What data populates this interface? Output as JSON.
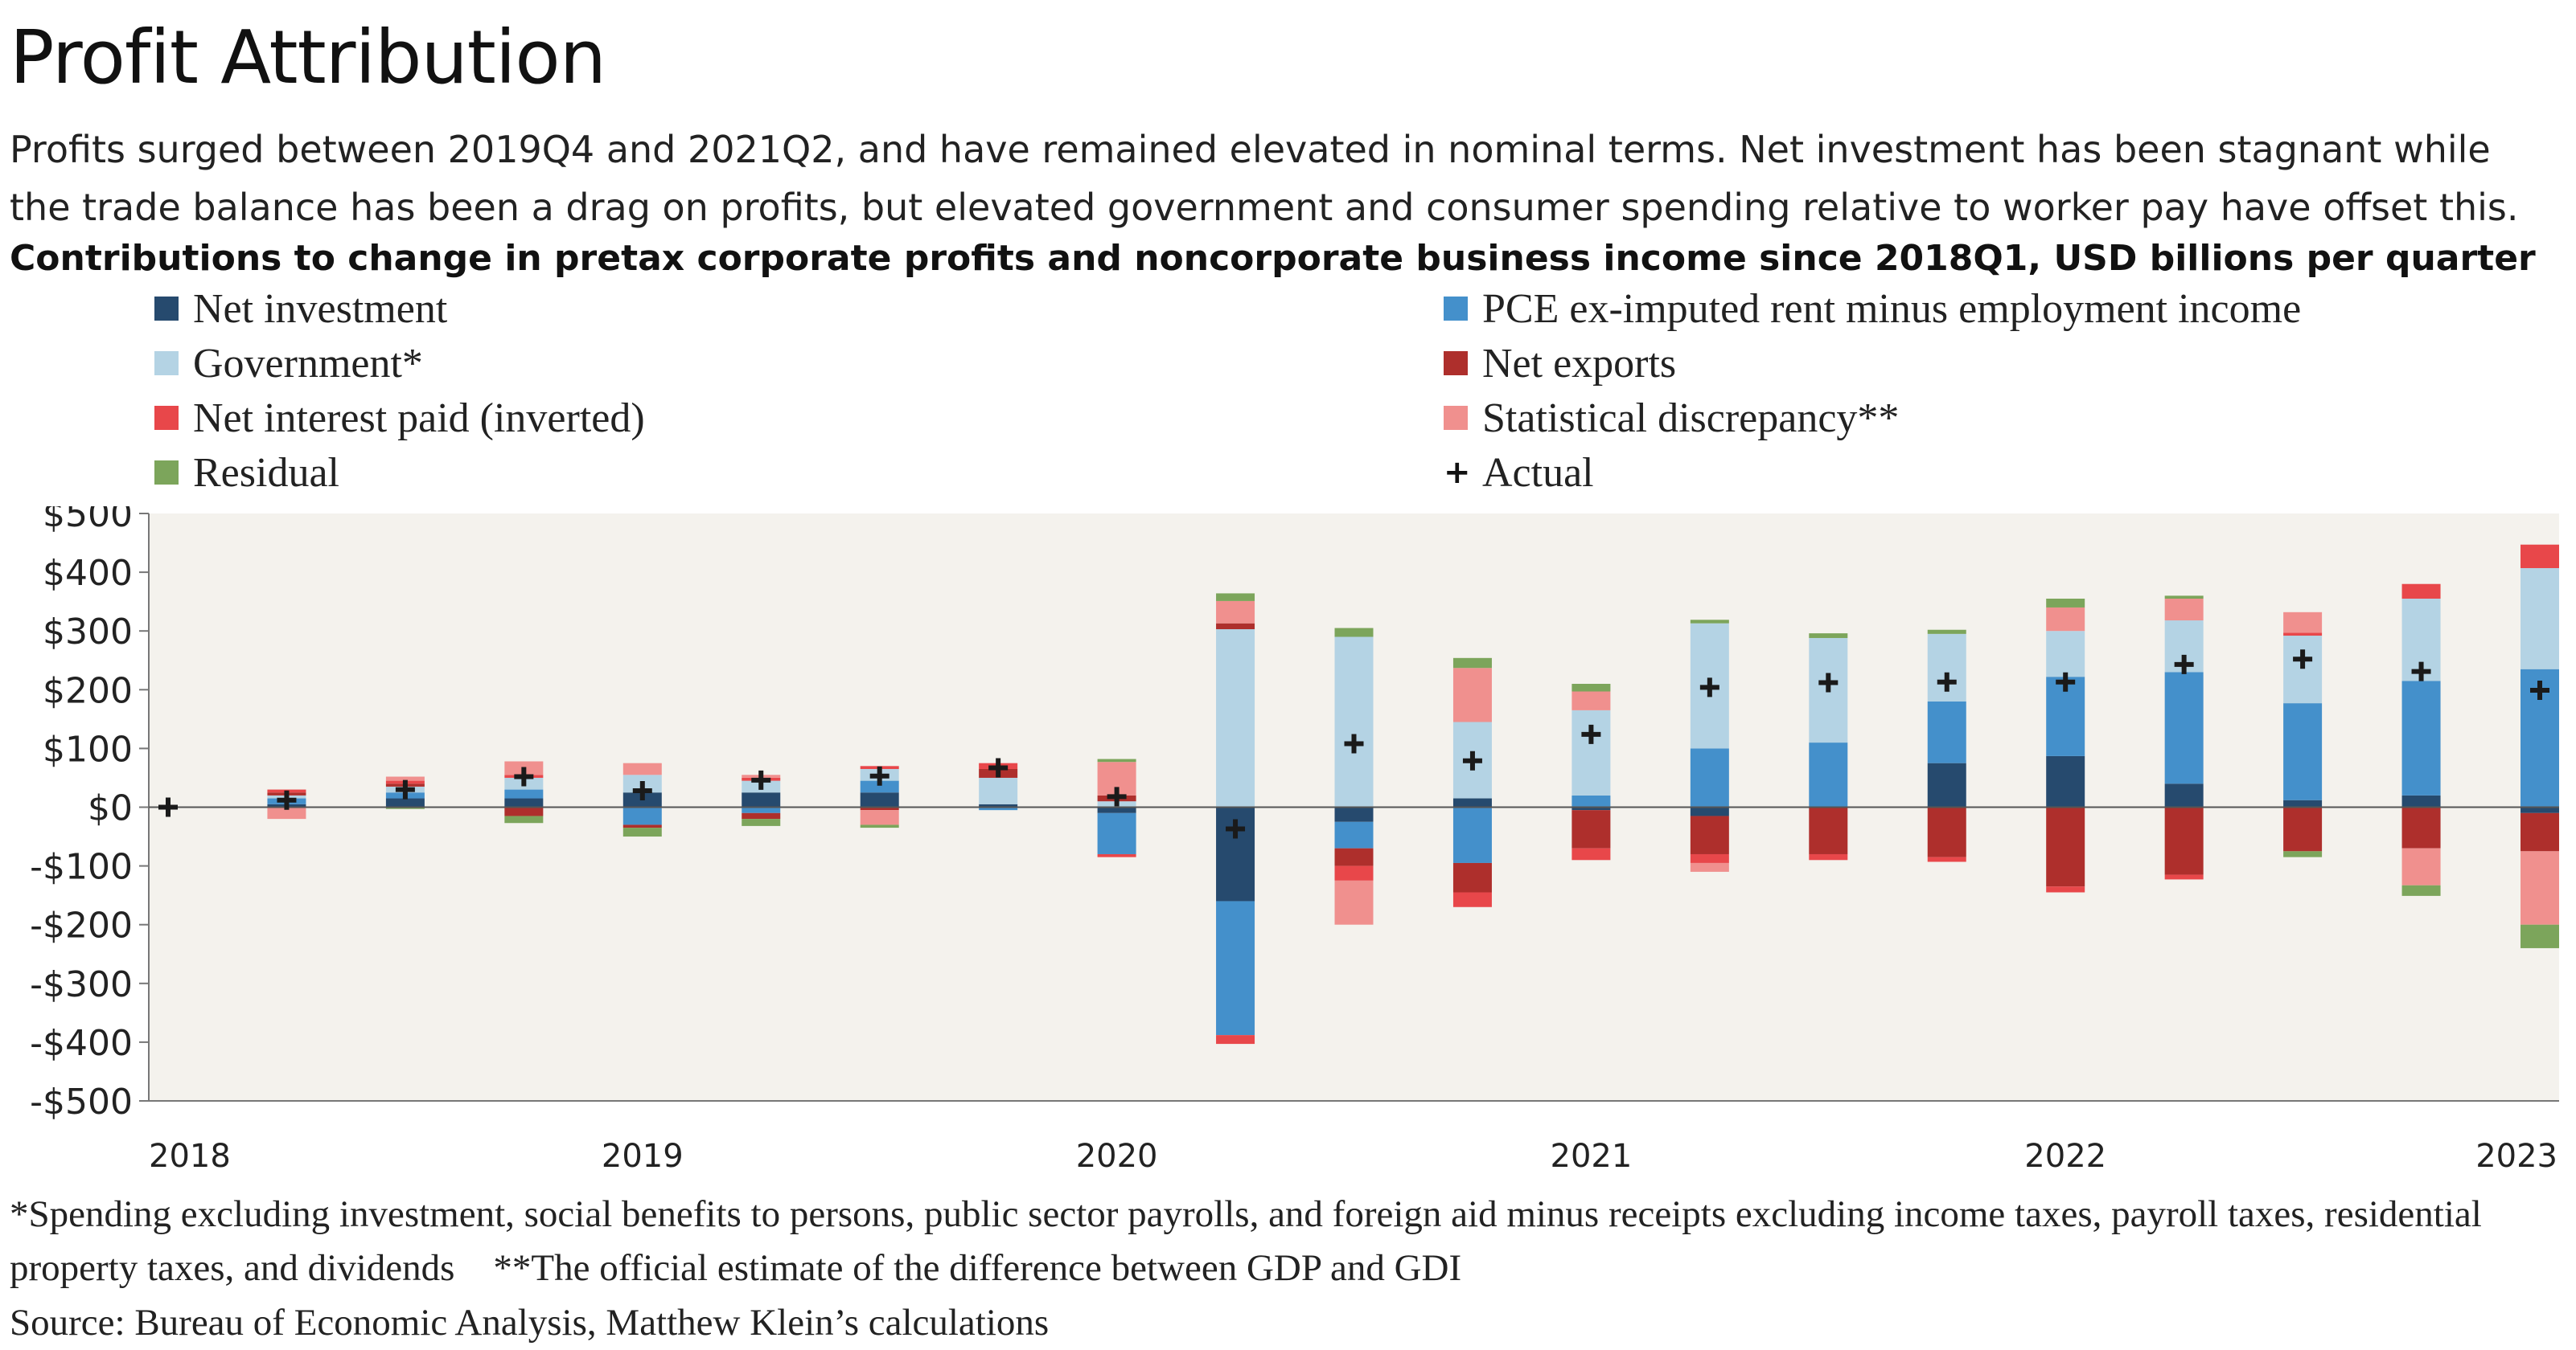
{
  "header": {
    "title": "Profit Attribution",
    "subtitle": "Profits surged between 2019Q4 and 2021Q2, and have remained elevated in nominal terms. Net investment has been stagnant while the trade balance has been a drag on profits, but elevated government and consumer spending relative to worker pay have offset this.",
    "chart_title": "Contributions to change in pretax corporate profits and noncorporate business income since 2018Q1, USD billions per quarter"
  },
  "legend": {
    "items": [
      {
        "label": "Net investment",
        "color": "#264a6e"
      },
      {
        "label": "PCE ex-imputed rent minus employment income",
        "color": "#4490cb"
      },
      {
        "label": "Government*",
        "color": "#b4d3e4"
      },
      {
        "label": "Net exports",
        "color": "#ae2f2c"
      },
      {
        "label": "Net interest paid (inverted)",
        "color": "#e8474a"
      },
      {
        "label": "Statistical discrepancy**",
        "color": "#f0908e"
      },
      {
        "label": "Residual",
        "color": "#7ca55b"
      },
      {
        "label": "Actual",
        "icon": "plus-icon"
      }
    ]
  },
  "footnotes": {
    "note1": "*Spending excluding investment, social benefits to persons, public sector payrolls, and foreign aid minus receipts excluding income taxes, payroll taxes, residential property taxes, and dividends",
    "note2": "**The official estimate of the difference between GDP and GDI",
    "source": "Source: Bureau of Economic Analysis, Matthew Klein’s calculations"
  },
  "chart_data": {
    "type": "bar",
    "stacked": true,
    "ylim": [
      -500,
      500
    ],
    "y_ticks": [
      500,
      400,
      300,
      200,
      100,
      0,
      -100,
      -200,
      -300,
      -400,
      -500
    ],
    "y_tick_labels": [
      "$500",
      "$400",
      "$300",
      "$200",
      "$100",
      "$0",
      "-$100",
      "-$200",
      "-$300",
      "-$400",
      "-$500"
    ],
    "x_tick_labels": [
      "2018",
      "2019",
      "2020",
      "2021",
      "2022",
      "2023"
    ],
    "x_tick_index": [
      0,
      4,
      8,
      12,
      16,
      20
    ],
    "grid": false,
    "background": "#f4f2ed",
    "categories": [
      "2018Q1",
      "2018Q2",
      "2018Q3",
      "2018Q4",
      "2019Q1",
      "2019Q2",
      "2019Q3",
      "2019Q4",
      "2020Q1",
      "2020Q2",
      "2020Q3",
      "2020Q4",
      "2021Q1",
      "2021Q2",
      "2021Q3",
      "2021Q4",
      "2022Q1",
      "2022Q2",
      "2022Q3",
      "2022Q4",
      "2023Q1"
    ],
    "series": [
      {
        "name": "Net investment",
        "color": "#264a6e",
        "values": [
          0,
          5,
          15,
          15,
          25,
          25,
          25,
          5,
          -10,
          -160,
          -25,
          15,
          -5,
          -15,
          0,
          75,
          87,
          40,
          12,
          20,
          -10
        ]
      },
      {
        "name": "PCE ex-imputed rent minus employment income",
        "color": "#4490cb",
        "values": [
          0,
          10,
          10,
          15,
          -30,
          -10,
          20,
          -5,
          -70,
          -228,
          -45,
          -95,
          20,
          100,
          110,
          105,
          135,
          190,
          165,
          195,
          235
        ]
      },
      {
        "name": "Government*",
        "color": "#b4d3e4",
        "values": [
          0,
          5,
          10,
          20,
          30,
          20,
          20,
          45,
          10,
          303,
          290,
          130,
          145,
          213,
          178,
          115,
          78,
          88,
          115,
          140,
          172
        ]
      },
      {
        "name": "Net exports",
        "color": "#ae2f2c",
        "values": [
          0,
          5,
          5,
          -15,
          -5,
          -10,
          -5,
          15,
          10,
          10,
          -30,
          -50,
          -65,
          -65,
          -80,
          -85,
          -135,
          -115,
          -75,
          -70,
          -65
        ]
      },
      {
        "name": "Net interest paid (inverted)",
        "color": "#e8474a",
        "values": [
          0,
          5,
          5,
          5,
          0,
          5,
          5,
          10,
          -5,
          -15,
          -25,
          -25,
          -20,
          -15,
          -10,
          -8,
          -10,
          -8,
          5,
          25,
          40
        ]
      },
      {
        "name": "Statistical discrepancy**",
        "color": "#f0908e",
        "values": [
          0,
          -20,
          7,
          23,
          20,
          5,
          -25,
          0,
          57,
          38,
          -75,
          92,
          32,
          -15,
          0,
          0,
          40,
          37,
          35,
          -63,
          -125
        ]
      },
      {
        "name": "Residual",
        "color": "#7ca55b",
        "values": [
          0,
          0,
          -3,
          -12,
          -15,
          -12,
          -5,
          0,
          5,
          13,
          15,
          17,
          13,
          6,
          8,
          7,
          15,
          5,
          -10,
          -18,
          -40
        ]
      }
    ],
    "actual": {
      "name": "Actual",
      "values": [
        0,
        12,
        30,
        52,
        28,
        46,
        53,
        67,
        18,
        -37,
        108,
        79,
        124,
        204,
        212,
        213,
        213,
        243,
        252,
        231,
        199
      ]
    }
  }
}
